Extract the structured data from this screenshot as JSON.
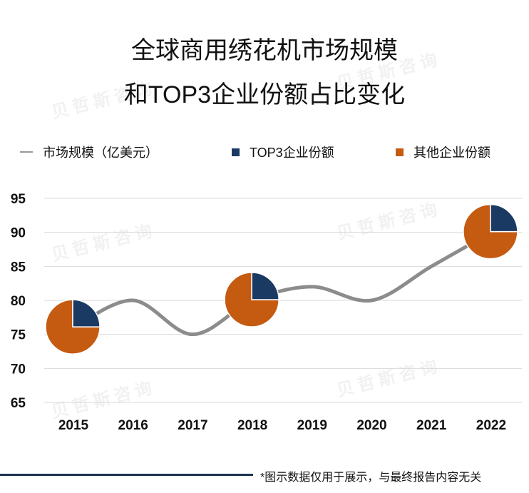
{
  "chart_data": {
    "type": "line",
    "title": [
      "全球商用绣花机市场规模",
      "和TOP3企业份额占比变化"
    ],
    "categories": [
      "2015",
      "2016",
      "2017",
      "2018",
      "2019",
      "2020",
      "2021",
      "2022"
    ],
    "series": [
      {
        "name": "市场规模（亿美元）",
        "values": [
          76,
          80,
          75,
          80,
          82,
          80,
          85,
          90
        ]
      }
    ],
    "pie_markers": [
      {
        "category": "2015",
        "top3_share": 25,
        "other_share": 75
      },
      {
        "category": "2018",
        "top3_share": 25,
        "other_share": 75
      },
      {
        "category": "2022",
        "top3_share": 25,
        "other_share": 75
      }
    ],
    "legend": [
      "市场规模（亿美元）",
      "TOP3企业份额",
      "其他企业份额"
    ],
    "ylim": [
      65,
      95
    ],
    "yticks": [
      "95",
      "90",
      "85",
      "80",
      "75",
      "70",
      "65"
    ],
    "colors": {
      "line": "#8c8c8c",
      "top3": "#1b3a63",
      "other": "#c55a11",
      "grid": "#d9d9d9"
    },
    "grid": true,
    "footnote": "*图示数据仅用于展示，与最终报告内容无关",
    "watermark": "贝哲斯咨询"
  }
}
